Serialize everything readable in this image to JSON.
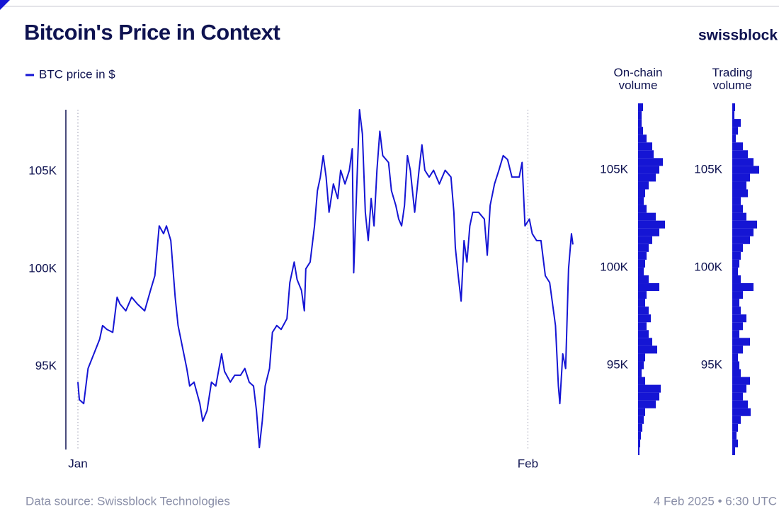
{
  "title": "Bitcoin's Price in Context",
  "brand": "swissblock",
  "source": "Data source: Swissblock Technologies",
  "timestamp": "4 Feb 2025 • 6:30 UTC",
  "chart_data": [
    {
      "type": "line",
      "x": [
        0,
        0.1,
        0.4,
        0.7,
        1.1,
        1.5,
        1.7,
        2.0,
        2.4,
        2.7,
        2.9,
        3.3,
        3.7,
        4.1,
        4.6,
        5.0,
        5.3,
        5.6,
        5.9,
        6.1,
        6.4,
        6.7,
        6.9,
        7.2,
        7.5,
        7.7,
        8.0,
        8.4,
        8.6,
        8.9,
        9.2,
        9.5,
        9.9,
        10.1,
        10.5,
        10.8,
        11.2,
        11.5,
        11.8,
        12.1,
        12.3,
        12.5,
        12.7,
        12.9,
        13.2,
        13.4,
        13.7,
        14.0,
        14.4,
        14.6,
        14.9,
        15.1,
        15.4,
        15.6,
        15.7,
        16.0,
        16.3,
        16.5,
        16.7,
        16.9,
        17.1,
        17.3,
        17.6,
        17.9,
        18.1,
        18.4,
        18.7,
        18.9,
        19.0,
        19.2,
        19.4,
        19.6,
        19.8,
        20.0,
        20.2,
        20.4,
        20.6,
        20.8,
        21.0,
        21.4,
        21.6,
        21.9,
        22.1,
        22.3,
        22.5,
        22.7,
        22.9,
        23.2,
        23.5,
        23.7,
        23.9,
        24.2,
        24.5,
        24.9,
        25.3,
        25.7,
        25.9,
        26.0,
        26.2,
        26.4,
        26.6,
        26.8,
        27.0,
        27.2,
        27.6,
        28.0,
        28.2,
        28.4,
        28.7,
        29.0,
        29.3,
        29.6,
        29.9,
        30.1,
        30.4,
        30.6,
        30.8,
        31.1,
        31.3,
        31.6,
        31.9,
        32.2,
        32.5,
        32.7,
        32.9,
        33.1,
        33.2,
        33.4,
        33.6,
        33.8,
        34.0,
        34.1
      ],
      "series": [
        {
          "name": "BTC price in $",
          "color": "#1515d4",
          "values": [
            94200,
            93300,
            93100,
            94900,
            95650,
            96400,
            97100,
            96900,
            96750,
            98550,
            98200,
            97850,
            98550,
            98200,
            97850,
            98900,
            99650,
            102200,
            101800,
            102200,
            101450,
            98550,
            97100,
            96000,
            94900,
            94000,
            94200,
            93100,
            92200,
            92750,
            94200,
            94000,
            95650,
            94750,
            94200,
            94550,
            94550,
            94900,
            94200,
            94000,
            92750,
            90850,
            92200,
            94000,
            94900,
            96750,
            97100,
            96900,
            97450,
            99300,
            100350,
            99450,
            98900,
            97850,
            100000,
            100350,
            102200,
            104000,
            104700,
            105800,
            104700,
            102900,
            104350,
            103600,
            105050,
            104350,
            105050,
            106150,
            99800,
            104000,
            108150,
            106900,
            102900,
            101450,
            103600,
            102200,
            105050,
            107050,
            105800,
            105450,
            104000,
            103250,
            102550,
            102200,
            103250,
            105800,
            105050,
            102900,
            105050,
            106350,
            105050,
            104700,
            105050,
            104350,
            105050,
            104700,
            102900,
            101100,
            99650,
            98350,
            101450,
            100350,
            102200,
            102900,
            102900,
            102550,
            100700,
            103250,
            104350,
            105050,
            105800,
            105600,
            104700,
            104700,
            104700,
            105450,
            102200,
            102550,
            101800,
            101450,
            101450,
            99650,
            99300,
            98200,
            97100,
            94000,
            93100,
            95650,
            94900,
            100000,
            101800,
            101250
          ]
        }
      ],
      "xlim": [
        -0.83,
        34.15
      ],
      "xticks": [
        {
          "value": 0,
          "label": "Jan"
        },
        {
          "value": 31,
          "label": "Feb"
        }
      ],
      "ylim": [
        90750,
        108150
      ],
      "yticks": [
        {
          "value": 95000,
          "label": "95K"
        },
        {
          "value": 100000,
          "label": "100K"
        },
        {
          "value": 105000,
          "label": "105K"
        }
      ],
      "grid": "x"
    },
    {
      "type": "histogram",
      "orientation": "horizontal",
      "title": "On-chain volume",
      "color": "#1515d4",
      "bins": [
        90400,
        90800,
        91200,
        91600,
        92000,
        92400,
        92800,
        93200,
        93600,
        94000,
        94400,
        94800,
        95200,
        95600,
        96000,
        96400,
        96800,
        97200,
        97600,
        98000,
        98400,
        98800,
        99200,
        99600,
        100000,
        100400,
        100800,
        101200,
        101600,
        102000,
        102400,
        102800,
        103200,
        103600,
        104000,
        104400,
        104800,
        105200,
        105600,
        106000,
        106400,
        106800,
        107200,
        107600,
        108000,
        108400
      ],
      "values": [
        2,
        3,
        4,
        6,
        8,
        10,
        25,
        30,
        32,
        10,
        5,
        8,
        10,
        27,
        20,
        15,
        12,
        18,
        15,
        10,
        12,
        30,
        15,
        8,
        10,
        12,
        15,
        20,
        30,
        38,
        25,
        12,
        8,
        10,
        15,
        25,
        30,
        35,
        22,
        20,
        12,
        7,
        5,
        5,
        7
      ],
      "xlim": [
        0,
        45
      ],
      "ylim": [
        90400,
        108400
      ],
      "yticks": [
        {
          "value": 95000,
          "label": "95K"
        },
        {
          "value": 100000,
          "label": "100K"
        },
        {
          "value": 105000,
          "label": "105K"
        }
      ]
    },
    {
      "type": "histogram",
      "orientation": "horizontal",
      "title": "Trading volume",
      "color": "#1515d4",
      "bins": [
        90400,
        90800,
        91200,
        91600,
        92000,
        92400,
        92800,
        93200,
        93600,
        94000,
        94400,
        94800,
        95200,
        95600,
        96000,
        96400,
        96800,
        97200,
        97600,
        98000,
        98400,
        98800,
        99200,
        99600,
        100000,
        100400,
        100800,
        101200,
        101600,
        102000,
        102400,
        102800,
        103200,
        103600,
        104000,
        104400,
        104800,
        105200,
        105600,
        106000,
        106400,
        106800,
        107200,
        107600,
        108000,
        108400
      ],
      "values": [
        4,
        8,
        6,
        8,
        12,
        26,
        22,
        15,
        20,
        25,
        12,
        10,
        8,
        15,
        25,
        10,
        15,
        20,
        12,
        10,
        15,
        30,
        12,
        8,
        10,
        12,
        15,
        25,
        30,
        35,
        20,
        15,
        12,
        22,
        20,
        25,
        38,
        30,
        22,
        15,
        5,
        8,
        12,
        3,
        4
      ],
      "xlim": [
        0,
        45
      ],
      "ylim": [
        90400,
        108400
      ],
      "yticks": [
        {
          "value": 95000,
          "label": "95K"
        },
        {
          "value": 100000,
          "label": "100K"
        },
        {
          "value": 105000,
          "label": "105K"
        }
      ]
    }
  ]
}
